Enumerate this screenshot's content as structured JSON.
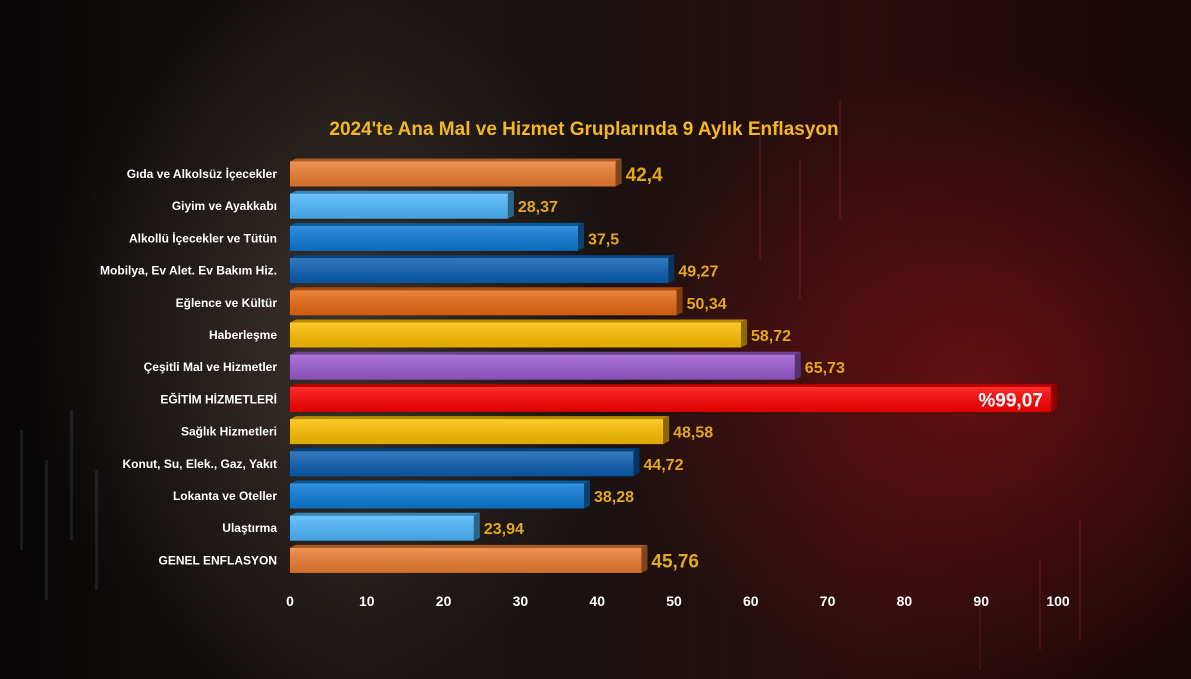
{
  "chart_data": {
    "type": "bar",
    "orientation": "horizontal",
    "title": "2024'te Ana Mal ve Hizmet Gruplarında 9 Aylık Enflasyon",
    "xlabel": "",
    "ylabel": "",
    "xlim": [
      0,
      100
    ],
    "x_ticks": [
      "0",
      "10",
      "20",
      "30",
      "40",
      "50",
      "60",
      "70",
      "80",
      "90",
      "100"
    ],
    "grid": false,
    "legend": "none",
    "bars": [
      {
        "category": "Gıda ve Alkolsüz İçecekler",
        "value": 42.4,
        "label": "42,4",
        "color": "#ed7d31",
        "size": "big"
      },
      {
        "category": "Giyim ve Ayakkabı",
        "value": 28.37,
        "label": "28,37",
        "color": "#4db8ff"
      },
      {
        "category": "Alkollü İçecekler ve Tütün",
        "value": 37.5,
        "label": "37,5",
        "color": "#0b7ad8"
      },
      {
        "category": "Mobilya, Ev Alet. Ev Bakım Hiz.",
        "value": 49.27,
        "label": "49,27",
        "color": "#0a5fb2"
      },
      {
        "category": "Eğlence ve Kültür",
        "value": 50.34,
        "label": "50,34",
        "color": "#e86a14"
      },
      {
        "category": "Haberleşme",
        "value": 58.72,
        "label": "58,72",
        "color": "#ffc000"
      },
      {
        "category": "Çeşitli Mal ve Hizmetler",
        "value": 65.73,
        "label": "65,73",
        "color": "#9b5bd1"
      },
      {
        "category": "EĞİTİM HİZMETLERİ",
        "value": 99.07,
        "label": "%99,07",
        "color": "#ff0000",
        "highlight": true
      },
      {
        "category": "Sağlık Hizmetleri",
        "value": 48.58,
        "label": "48,58",
        "color": "#ffc000"
      },
      {
        "category": "Konut, Su, Elek., Gaz, Yakıt",
        "value": 44.72,
        "label": "44,72",
        "color": "#0a5fb2"
      },
      {
        "category": "Lokanta ve Oteller",
        "value": 38.28,
        "label": "38,28",
        "color": "#0b7ad8"
      },
      {
        "category": "Ulaştırma",
        "value": 23.94,
        "label": "23,94",
        "color": "#4db8ff"
      },
      {
        "category": "GENEL ENFLASYON",
        "value": 45.76,
        "label": "45,76",
        "color": "#ed7d31",
        "size": "big"
      }
    ]
  }
}
